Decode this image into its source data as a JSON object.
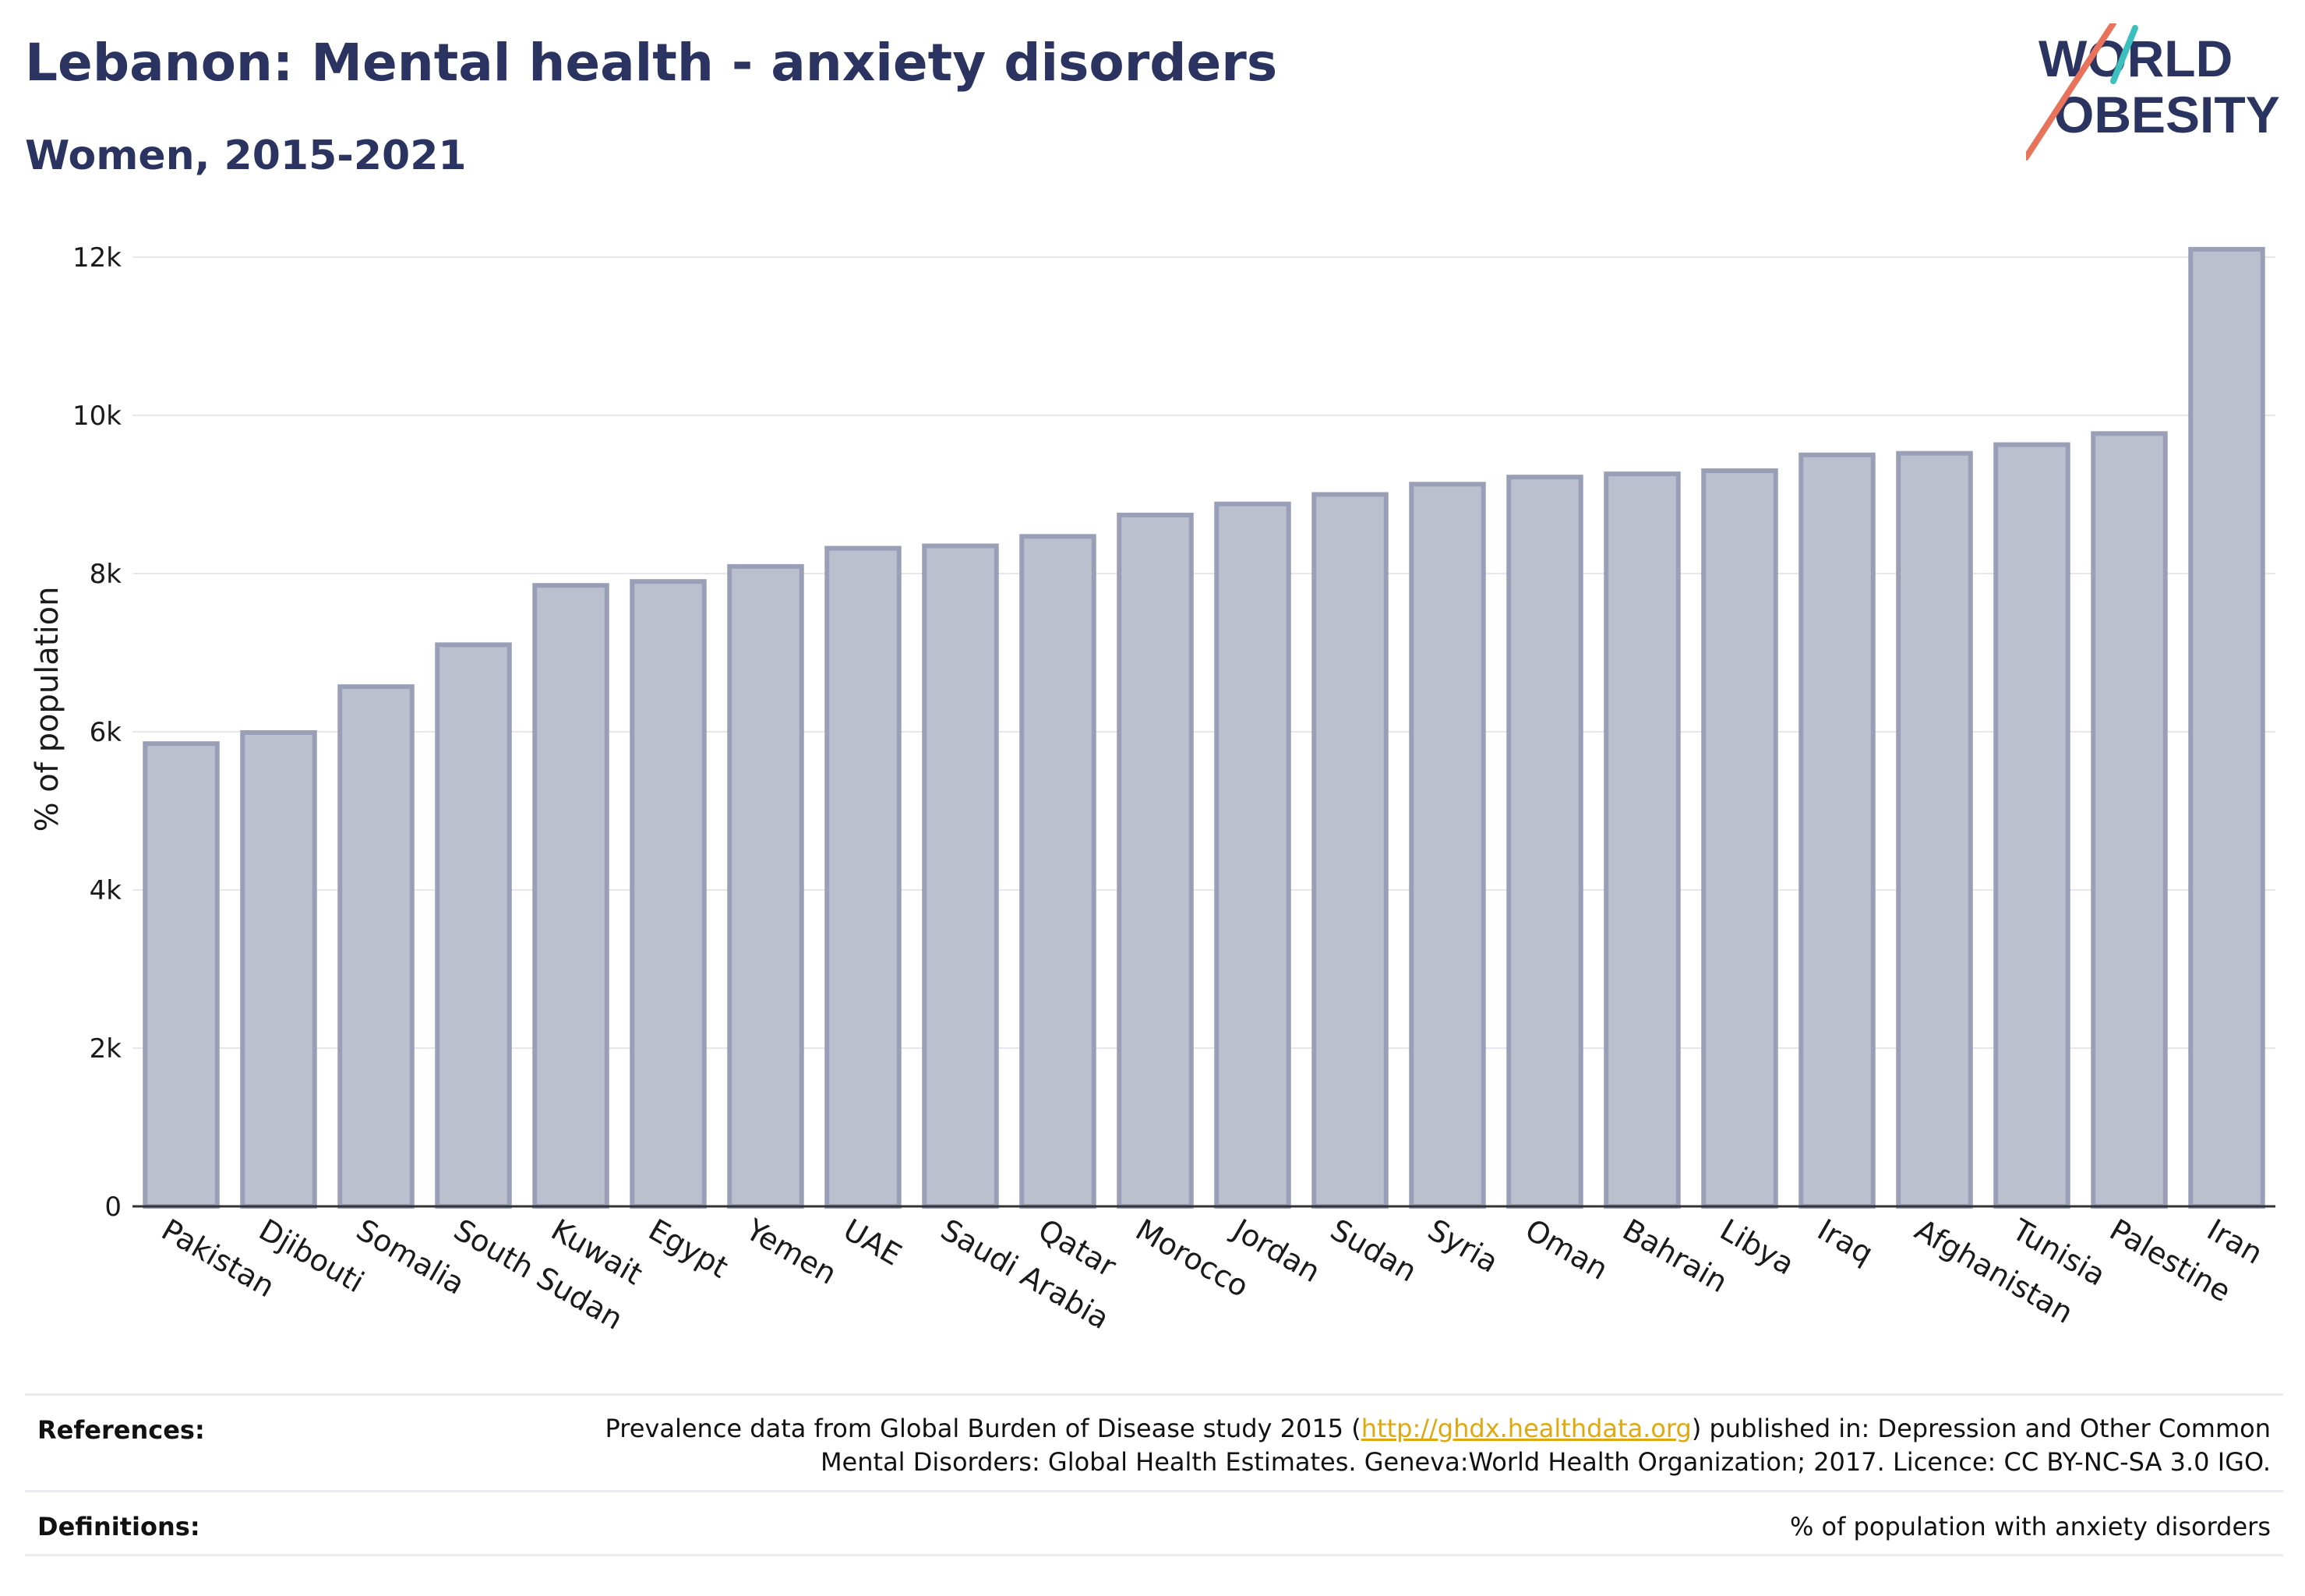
{
  "header": {
    "title": "Lebanon: Mental health - anxiety disorders",
    "subtitle": "Women, 2015-2021"
  },
  "logo": {
    "line1": "WORLD",
    "line2": "OBESITY"
  },
  "colors": {
    "title": "#2b3461",
    "bar_fill": "#bcc0ce",
    "bar_stroke": "#9a9fb8",
    "gridline": "#e6e6ec",
    "link": "#e0a80f",
    "logo_teal": "#3bbfbf",
    "logo_coral": "#e8735a"
  },
  "chart_data": {
    "type": "bar",
    "categories": [
      "Pakistan",
      "Djibouti",
      "Somalia",
      "South Sudan",
      "Kuwait",
      "Egypt",
      "Yemen",
      "UAE",
      "Saudi Arabia",
      "Qatar",
      "Morocco",
      "Jordan",
      "Sudan",
      "Syria",
      "Oman",
      "Bahrain",
      "Libya",
      "Iraq",
      "Afghanistan",
      "Tunisia",
      "Palestine",
      "Iran"
    ],
    "values": [
      5850,
      5990,
      6570,
      7100,
      7850,
      7900,
      8090,
      8320,
      8350,
      8470,
      8740,
      8880,
      9000,
      9130,
      9220,
      9260,
      9300,
      9500,
      9520,
      9630,
      9770,
      12100
    ],
    "ylabel": "% of population",
    "ylim": [
      0,
      12000
    ],
    "yticks": [
      0,
      2000,
      4000,
      6000,
      8000,
      10000,
      12000
    ],
    "ytick_labels": [
      "0",
      "2k",
      "4k",
      "6k",
      "8k",
      "10k",
      "12k"
    ],
    "grid": true,
    "legend": "none"
  },
  "footer": {
    "references_label": "References:",
    "references_pre": "Prevalence data from Global Burden of Disease study 2015 (",
    "references_link": "http://ghdx.healthdata.org",
    "references_post": ") published in: Depression and Other Common Mental Disorders: Global Health Estimates. Geneva:World Health Organization; 2017. Licence: CC BY-NC-SA 3.0 IGO.",
    "definitions_label": "Definitions:",
    "definitions_text": "% of population with anxiety disorders"
  }
}
